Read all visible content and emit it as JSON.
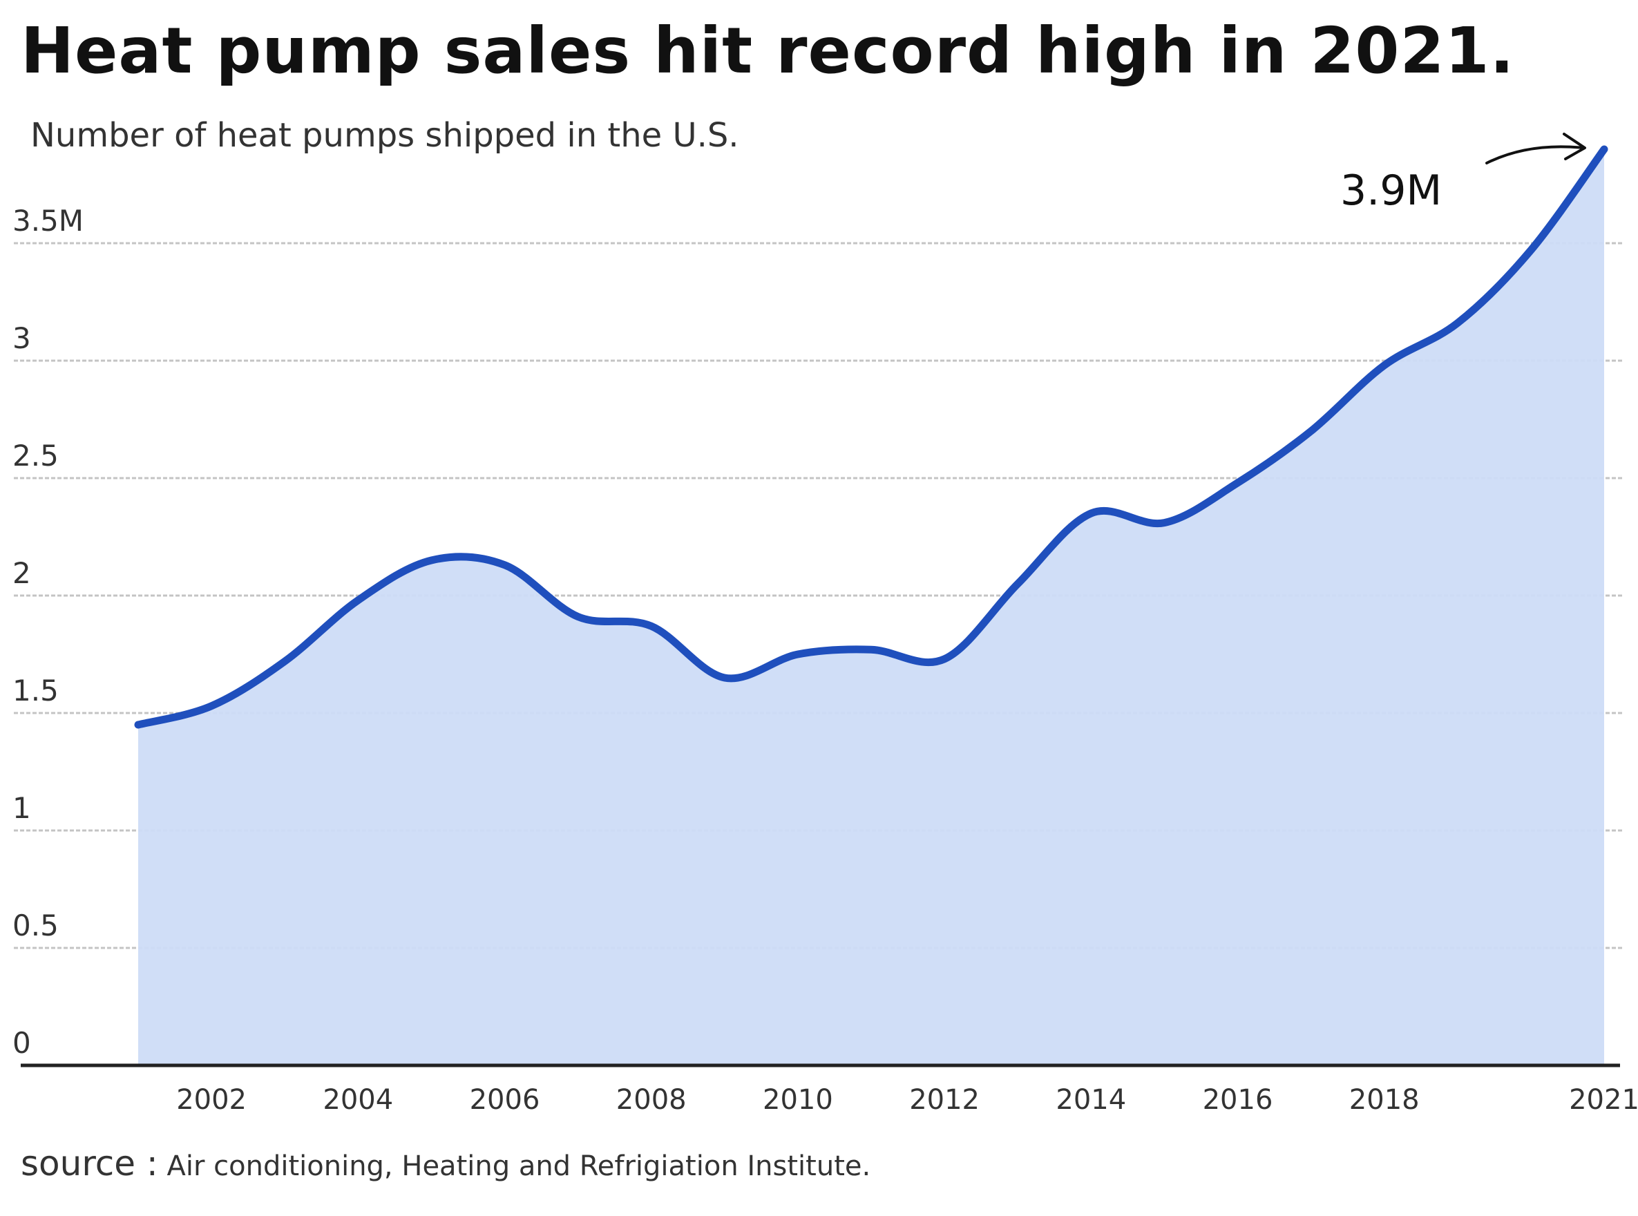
{
  "chart_data": {
    "type": "area",
    "title": "Heat pump sales hit record high in 2021.",
    "subtitle": "Number of heat pumps shipped in the U.S.",
    "source_label": "source :",
    "source_text": "Air conditioning, Heating and Refrigiation Institute.",
    "x": [
      2001,
      2002,
      2003,
      2004,
      2005,
      2006,
      2007,
      2008,
      2009,
      2010,
      2011,
      2012,
      2013,
      2014,
      2015,
      2016,
      2017,
      2018,
      2019,
      2020,
      2021
    ],
    "values": [
      1.45,
      1.53,
      1.72,
      1.98,
      2.15,
      2.13,
      1.91,
      1.87,
      1.65,
      1.75,
      1.77,
      1.73,
      2.05,
      2.35,
      2.31,
      2.48,
      2.7,
      2.98,
      3.16,
      3.47,
      3.9
    ],
    "x_ticks": [
      2002,
      2004,
      2006,
      2008,
      2010,
      2012,
      2014,
      2016,
      2018,
      2021
    ],
    "x_tick_labels": [
      "2002",
      "2004",
      "2006",
      "2008",
      "2010",
      "2012",
      "2014",
      "2016",
      "2018",
      "2021"
    ],
    "y_ticks": [
      0,
      0.5,
      1,
      1.5,
      2,
      2.5,
      3,
      3.5
    ],
    "y_tick_labels": [
      "0",
      "0.5",
      "1",
      "1.5",
      "2",
      "2.5",
      "3",
      "3.5M"
    ],
    "ylim": [
      0,
      3.9
    ],
    "xlim": [
      2001,
      2021
    ],
    "annotation": {
      "text": "3.9M",
      "x": 2021,
      "y": 3.9
    },
    "grid": true,
    "colors": {
      "line": "#1f4fbd",
      "fill": "#cddcf7",
      "grid": "#c4c4c4",
      "axis": "#222222",
      "text": "#333333"
    }
  }
}
